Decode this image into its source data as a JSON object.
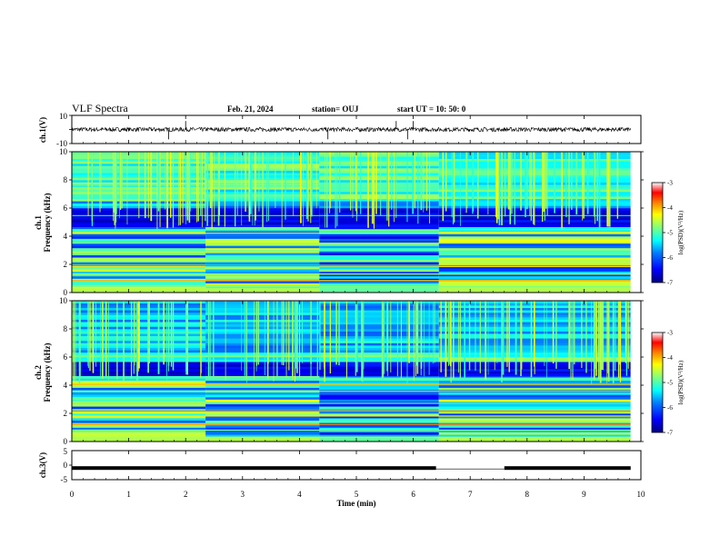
{
  "header": {
    "title": "VLF Spectra",
    "date": "Feb. 21, 2024",
    "station": "station= OUJ",
    "start": "start  UT =   10: 50: 0"
  },
  "colors": {
    "waveform": "#000000",
    "colormap": [
      "#00007f",
      "#0000ff",
      "#007fff",
      "#00ffff",
      "#7fff7f",
      "#ffff00",
      "#ff7f00",
      "#ff0000",
      "#ffffff"
    ],
    "background": "#ffffff"
  },
  "chart_data": [
    {
      "type": "line",
      "panel": "ch1-waveform",
      "ylabel": "ch.1(V)",
      "ylim": [
        -10,
        10
      ],
      "yticks": [
        "10",
        "-10"
      ],
      "xlim": [
        0,
        10
      ],
      "description_values": {
        "baseline": 0,
        "typical_amplitude": 1.5,
        "spike_times_min": [
          1.7,
          2.0,
          4.5,
          5.7,
          5.9,
          6.0
        ]
      }
    },
    {
      "type": "heatmap",
      "panel": "ch1-spectrogram",
      "ylabel": "ch.1\nFrequency (kHz)",
      "ylabel_lines": [
        "ch.1",
        "Frequency (kHz)"
      ],
      "ylim": [
        0,
        10
      ],
      "xlim": [
        0,
        10
      ],
      "yticks": [
        "0",
        "2",
        "4",
        "6",
        "8",
        "10"
      ],
      "colorbar": {
        "label": "log(PSD)(V²/Hz)",
        "range": [
          -7,
          -3
        ],
        "ticks": [
          "-3",
          "-4",
          "-5",
          "-6",
          "-7"
        ]
      },
      "data_end_min": 9.82,
      "segment_breaks_min": [
        2.35,
        4.35,
        6.45
      ]
    },
    {
      "type": "heatmap",
      "panel": "ch2-spectrogram",
      "ylabel_lines": [
        "ch.2",
        "Frequency (kHz)"
      ],
      "ylim": [
        0,
        10
      ],
      "xlim": [
        0,
        10
      ],
      "yticks": [
        "0",
        "2",
        "4",
        "6",
        "8",
        "10"
      ],
      "colorbar": {
        "label": "log(PSD)(V²/Hz)",
        "range": [
          -7,
          -3
        ],
        "ticks": [
          "-3",
          "-4",
          "-5",
          "-6",
          "-7"
        ]
      },
      "data_end_min": 9.82,
      "segment_breaks_min": [
        2.35,
        4.35,
        6.45
      ]
    },
    {
      "type": "line",
      "panel": "ch3-waveform",
      "ylabel": "ch.3(V)",
      "ylim": [
        -5,
        5
      ],
      "yticks": [
        "5",
        "0",
        "-5"
      ],
      "xlim": [
        0,
        10
      ],
      "level": -1,
      "gap_min": [
        6.4,
        7.6
      ]
    }
  ],
  "xaxis": {
    "label": "Time (min)",
    "ticks": [
      "0",
      "1",
      "2",
      "3",
      "4",
      "5",
      "6",
      "7",
      "8",
      "9",
      "10"
    ]
  }
}
